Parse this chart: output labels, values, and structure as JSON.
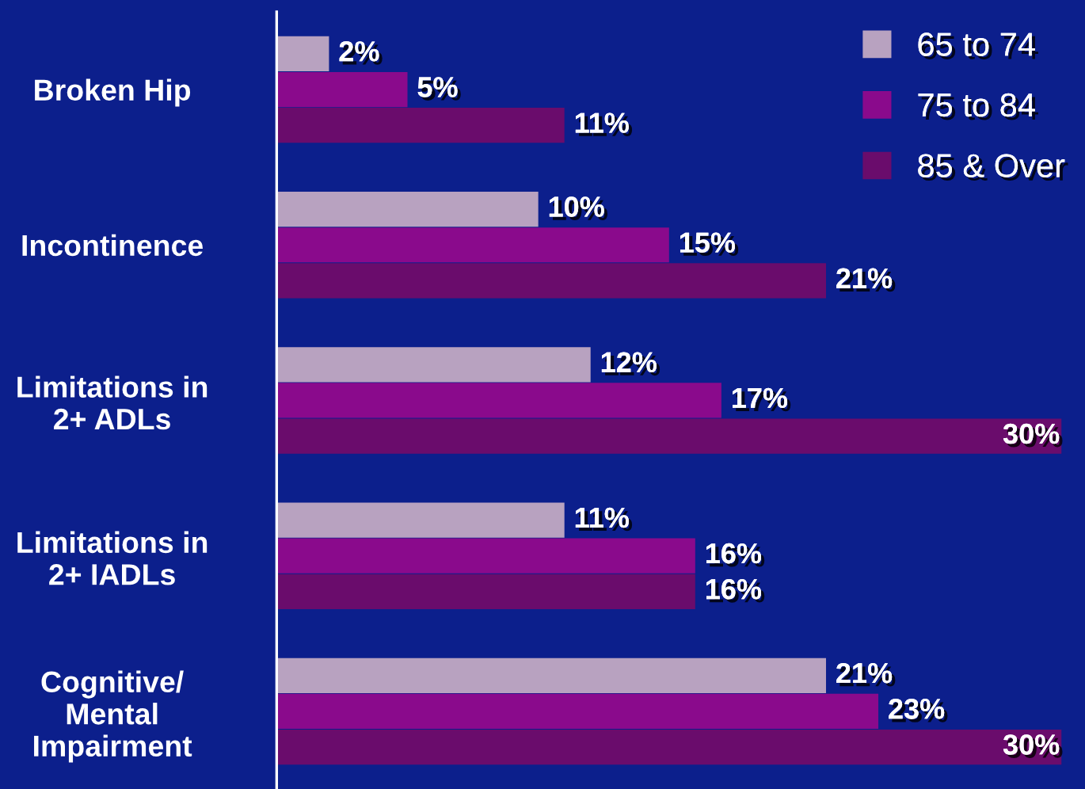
{
  "chart_data": {
    "type": "bar",
    "orientation": "horizontal",
    "categories": [
      "Broken Hip",
      "Incontinence",
      "Limitations in\n2+ ADLs",
      "Limitations in\n2+ IADLs",
      "Cognitive/\nMental\nImpairment"
    ],
    "series": [
      {
        "name": "65 to 74",
        "color": "#b8a2c0",
        "values": [
          2,
          10,
          12,
          11,
          21
        ],
        "value_labels": [
          "2%",
          "10%",
          "12%",
          "11%",
          "21%"
        ]
      },
      {
        "name": "75 to 84",
        "color": "#8a0a8c",
        "values": [
          5,
          15,
          17,
          16,
          23
        ],
        "value_labels": [
          "5%",
          "15%",
          "17%",
          "16%",
          "23%"
        ]
      },
      {
        "name": "85 & Over",
        "color": "#6a0c6c",
        "values": [
          11,
          21,
          30,
          16,
          30
        ],
        "value_labels": [
          "11%",
          "21%",
          "30%",
          "16%",
          "30%"
        ]
      }
    ],
    "legend": "top right",
    "tick_labels": "y",
    "grid": false
  }
}
